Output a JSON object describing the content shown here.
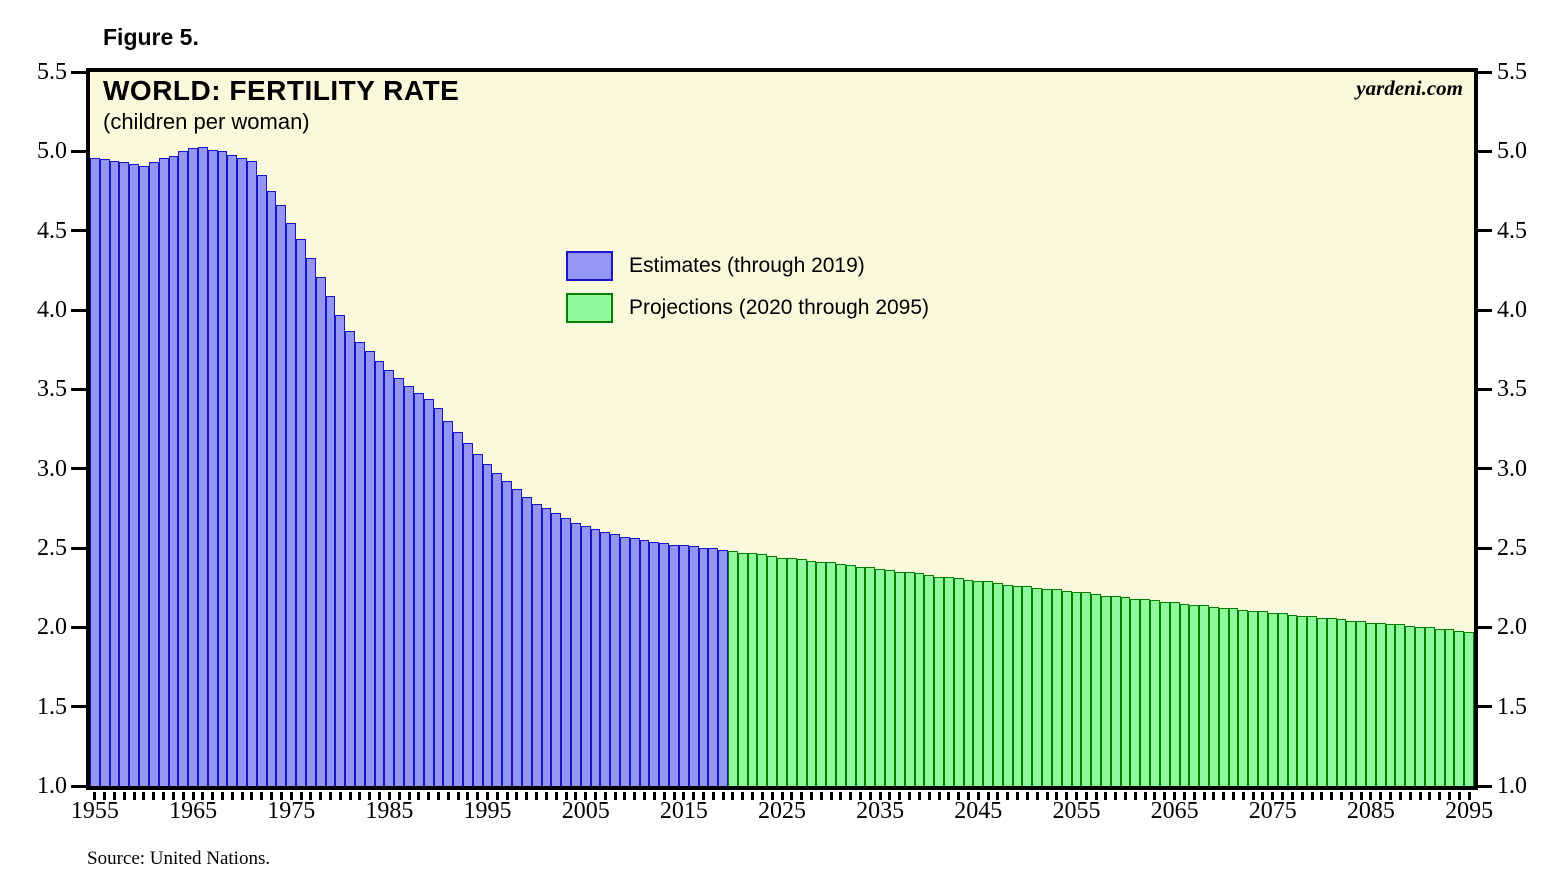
{
  "figure_label": "Figure 5.",
  "chart": {
    "title": "WORLD: FERTILITY RATE",
    "subtitle": "(children per woman)",
    "watermark": "yardeni.com",
    "source": "Source: United Nations.",
    "plot_background": "#FBF9DC",
    "legend": [
      {
        "label": "Estimates (through 2019)",
        "fill": "#9595F3",
        "stroke": "#1515CE"
      },
      {
        "label": "Projections (2020 through 2095)",
        "fill": "#90F99E",
        "stroke": "#008000"
      }
    ]
  },
  "chart_data": {
    "type": "bar",
    "title": "WORLD: FERTILITY RATE",
    "subtitle": "(children per woman)",
    "xlabel": "",
    "ylabel": "children per woman",
    "x_start": 1955,
    "x_end": 2095,
    "ylim": [
      1.0,
      5.5
    ],
    "y_tick_step": 0.5,
    "x_label_start": 1955,
    "x_label_step": 10,
    "grid": false,
    "legend_position": "upper-middle-left",
    "series": [
      {
        "name": "Estimates (through 2019)",
        "start_year": 1955,
        "end_year": 2019,
        "fill": "#9595F3",
        "stroke": "#1515CE",
        "values": [
          4.96,
          4.95,
          4.94,
          4.93,
          4.92,
          4.91,
          4.93,
          4.96,
          4.97,
          5.0,
          5.02,
          5.03,
          5.01,
          5.0,
          4.98,
          4.96,
          4.94,
          4.85,
          4.75,
          4.66,
          4.55,
          4.45,
          4.33,
          4.21,
          4.09,
          3.97,
          3.87,
          3.8,
          3.74,
          3.68,
          3.62,
          3.57,
          3.52,
          3.48,
          3.44,
          3.38,
          3.3,
          3.23,
          3.16,
          3.09,
          3.03,
          2.97,
          2.92,
          2.87,
          2.82,
          2.78,
          2.75,
          2.72,
          2.69,
          2.66,
          2.64,
          2.62,
          2.6,
          2.59,
          2.57,
          2.56,
          2.55,
          2.54,
          2.53,
          2.52,
          2.52,
          2.51,
          2.5,
          2.5,
          2.49
        ]
      },
      {
        "name": "Projections (2020 through 2095)",
        "start_year": 2020,
        "end_year": 2095,
        "fill": "#90F99E",
        "stroke": "#008000",
        "values": [
          2.48,
          2.47,
          2.47,
          2.46,
          2.45,
          2.44,
          2.44,
          2.43,
          2.42,
          2.41,
          2.41,
          2.4,
          2.39,
          2.38,
          2.38,
          2.37,
          2.36,
          2.35,
          2.35,
          2.34,
          2.33,
          2.32,
          2.32,
          2.31,
          2.3,
          2.29,
          2.29,
          2.28,
          2.27,
          2.26,
          2.26,
          2.25,
          2.24,
          2.24,
          2.23,
          2.22,
          2.22,
          2.21,
          2.2,
          2.2,
          2.19,
          2.18,
          2.18,
          2.17,
          2.16,
          2.16,
          2.15,
          2.14,
          2.14,
          2.13,
          2.12,
          2.12,
          2.11,
          2.1,
          2.1,
          2.09,
          2.09,
          2.08,
          2.07,
          2.07,
          2.06,
          2.06,
          2.05,
          2.04,
          2.04,
          2.03,
          2.03,
          2.02,
          2.02,
          2.01,
          2.0,
          2.0,
          1.99,
          1.99,
          1.98,
          1.97
        ]
      }
    ]
  }
}
